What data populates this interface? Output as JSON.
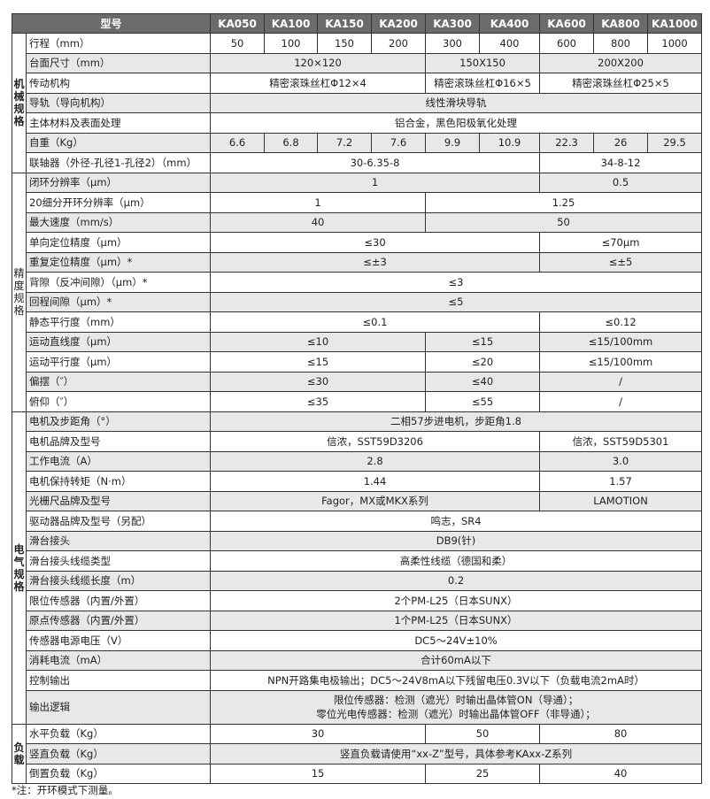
{
  "header": {
    "model_label": "型号",
    "models": [
      "KA050",
      "KA100",
      "KA150",
      "KA200",
      "KA300",
      "KA400",
      "KA600",
      "KA800",
      "KA1000"
    ]
  },
  "groups": [
    {
      "label": "机械规格",
      "bold": true,
      "rows": [
        {
          "param": "行程（mm）",
          "cells": [
            {
              "text": "50",
              "span": 1
            },
            {
              "text": "100",
              "span": 1
            },
            {
              "text": "150",
              "span": 1
            },
            {
              "text": "200",
              "span": 1
            },
            {
              "text": "300",
              "span": 1
            },
            {
              "text": "400",
              "span": 1
            },
            {
              "text": "600",
              "span": 1
            },
            {
              "text": "800",
              "span": 1
            },
            {
              "text": "1000",
              "span": 1
            }
          ]
        },
        {
          "param": "台面尺寸（mm）",
          "cells": [
            {
              "text": "120×120",
              "span": 4
            },
            {
              "text": "150X150",
              "span": 2
            },
            {
              "text": "200X200",
              "span": 3
            }
          ]
        },
        {
          "param": "传动机构",
          "cells": [
            {
              "text": "精密滚珠丝杠Φ12×4",
              "span": 4
            },
            {
              "text": "精密滚珠丝杠Φ16×5",
              "span": 2
            },
            {
              "text": "精密滚珠丝杠Φ25×5",
              "span": 3
            }
          ]
        },
        {
          "param": "导轨（导向机构）",
          "cells": [
            {
              "text": "线性滑块导轨",
              "span": 9
            }
          ]
        },
        {
          "param": "主体材料及表面处理",
          "cells": [
            {
              "text": "铝合金，黑色阳极氧化处理",
              "span": 9
            }
          ]
        },
        {
          "param": "自重（Kg）",
          "cells": [
            {
              "text": "6.6",
              "span": 1
            },
            {
              "text": "6.8",
              "span": 1
            },
            {
              "text": "7.2",
              "span": 1
            },
            {
              "text": "7.6",
              "span": 1
            },
            {
              "text": "9.9",
              "span": 1
            },
            {
              "text": "10.9",
              "span": 1
            },
            {
              "text": "22.3",
              "span": 1
            },
            {
              "text": "26",
              "span": 1
            },
            {
              "text": "29.5",
              "span": 1
            }
          ]
        },
        {
          "param": "联轴器（外径-孔径1-孔径2）（mm）",
          "cells": [
            {
              "text": "30-6.35-8",
              "span": 6
            },
            {
              "text": "34-8-12",
              "span": 3
            }
          ]
        }
      ]
    },
    {
      "label": "精度规格",
      "bold": false,
      "rows": [
        {
          "param": "闭环分辨率（μm）",
          "cells": [
            {
              "text": "1",
              "span": 6
            },
            {
              "text": "0.5",
              "span": 3
            }
          ]
        },
        {
          "param": "20细分开环分辨率（μm）",
          "cells": [
            {
              "text": "1",
              "span": 4
            },
            {
              "text": "1.25",
              "span": 5
            }
          ]
        },
        {
          "param": "最大速度（mm/s）",
          "cells": [
            {
              "text": "40",
              "span": 4
            },
            {
              "text": "50",
              "span": 5
            }
          ]
        },
        {
          "param": "单向定位精度（μm）",
          "cells": [
            {
              "text": "≤30",
              "span": 6
            },
            {
              "text": "≤70μm",
              "span": 3
            }
          ]
        },
        {
          "param": "重复定位精度（μm）*",
          "cells": [
            {
              "text": "≤±3",
              "span": 6
            },
            {
              "text": "≤±5",
              "span": 3
            }
          ]
        },
        {
          "param": "背隙（反冲间隙）（μm）*",
          "cells": [
            {
              "text": "≤3",
              "span": 9
            }
          ]
        },
        {
          "param": "回程间隙（μm）*",
          "cells": [
            {
              "text": "≤5",
              "span": 9
            }
          ]
        },
        {
          "param": "静态平行度（mm）",
          "cells": [
            {
              "text": "≤0.1",
              "span": 6
            },
            {
              "text": "≤0.12",
              "span": 3
            }
          ]
        },
        {
          "param": "运动直线度（μm）",
          "cells": [
            {
              "text": "≤10",
              "span": 4
            },
            {
              "text": "≤15",
              "span": 2
            },
            {
              "text": "≤15/100mm",
              "span": 3
            }
          ]
        },
        {
          "param": "运动平行度（μm）",
          "cells": [
            {
              "text": "≤15",
              "span": 4
            },
            {
              "text": "≤20",
              "span": 2
            },
            {
              "text": "≤15/100mm",
              "span": 3
            }
          ]
        },
        {
          "param": "偏摆（″）",
          "cells": [
            {
              "text": "≤30",
              "span": 4
            },
            {
              "text": "≤40",
              "span": 2
            },
            {
              "text": "/",
              "span": 3
            }
          ]
        },
        {
          "param": "俯仰（″）",
          "cells": [
            {
              "text": "≤35",
              "span": 4
            },
            {
              "text": "≤55",
              "span": 2
            },
            {
              "text": "/",
              "span": 3
            }
          ]
        }
      ]
    },
    {
      "label": "电气规格",
      "bold": true,
      "rows": [
        {
          "param": "电机及步距角（°）",
          "cells": [
            {
              "text": "二相57步进电机，步距角1.8",
              "span": 9
            }
          ]
        },
        {
          "param": "电机品牌及型号",
          "cells": [
            {
              "text": "信浓，SST59D3206",
              "span": 6
            },
            {
              "text": "信浓，SST59D5301",
              "span": 3
            }
          ]
        },
        {
          "param": "工作电流（A）",
          "cells": [
            {
              "text": "2.8",
              "span": 6
            },
            {
              "text": "3.0",
              "span": 3
            }
          ]
        },
        {
          "param": "电机保持转矩（N·m）",
          "cells": [
            {
              "text": "1.44",
              "span": 6
            },
            {
              "text": "1.57",
              "span": 3
            }
          ]
        },
        {
          "param": "光栅尺品牌及型号",
          "cells": [
            {
              "text": "Fagor，MX或MKX系列",
              "span": 6
            },
            {
              "text": "LAMOTION",
              "span": 3
            }
          ]
        },
        {
          "param": "驱动器品牌及型号（另配）",
          "cells": [
            {
              "text": "鸣志，SR4",
              "span": 9
            }
          ]
        },
        {
          "param": "滑台接头",
          "cells": [
            {
              "text": "DB9(针)",
              "span": 9
            }
          ]
        },
        {
          "param": "滑台接头线缆类型",
          "cells": [
            {
              "text": "高柔性线缆（德国和柔）",
              "span": 9
            }
          ]
        },
        {
          "param": "滑台接头线缆长度（m）",
          "cells": [
            {
              "text": "0.2",
              "span": 9
            }
          ]
        },
        {
          "param": "限位传感器（内置/外置）",
          "cells": [
            {
              "text": "2个PM-L25（日本SUNX）",
              "span": 9
            }
          ]
        },
        {
          "param": "原点传感器（内置/外置）",
          "cells": [
            {
              "text": "1个PM-L25（日本SUNX）",
              "span": 9
            }
          ]
        },
        {
          "param": "传感器电源电压（V）",
          "cells": [
            {
              "text": "DC5～24V±10%",
              "span": 9
            }
          ]
        },
        {
          "param": "消耗电流（mA）",
          "cells": [
            {
              "text": "合计60mA以下",
              "span": 9
            }
          ]
        },
        {
          "param": "控制输出",
          "cells": [
            {
              "text": "NPN开路集电极输出；DC5～24V8mA以下残留电压0.3V以下（负载电流2mA时）",
              "span": 9
            }
          ]
        },
        {
          "param": "输出逻辑",
          "tall": true,
          "cells": [
            {
              "text": "限位传感器：检测（遮光）时输出晶体管ON（导通）；",
              "span": 9
            },
            {
              "text": "零位光电传感器：检测（遮光）时输出晶体管OFF（非导通）；",
              "span": 0
            }
          ]
        }
      ]
    },
    {
      "label": "负载",
      "bold": true,
      "rows": [
        {
          "param": "水平负载（Kg）",
          "cells": [
            {
              "text": "30",
              "span": 4
            },
            {
              "text": "50",
              "span": 2
            },
            {
              "text": "80",
              "span": 3
            }
          ]
        },
        {
          "param": "竖直负载（Kg）",
          "cells": [
            {
              "text": "竖直负载请使用“xx-Z”型号，具体参考KAxx-Z系列",
              "span": 9
            }
          ]
        },
        {
          "param": "倒置负载（Kg）",
          "cells": [
            {
              "text": "15",
              "span": 4
            },
            {
              "text": "25",
              "span": 2
            },
            {
              "text": "40",
              "span": 3
            }
          ]
        }
      ]
    }
  ],
  "footnote": "*注：开环模式下测量。"
}
